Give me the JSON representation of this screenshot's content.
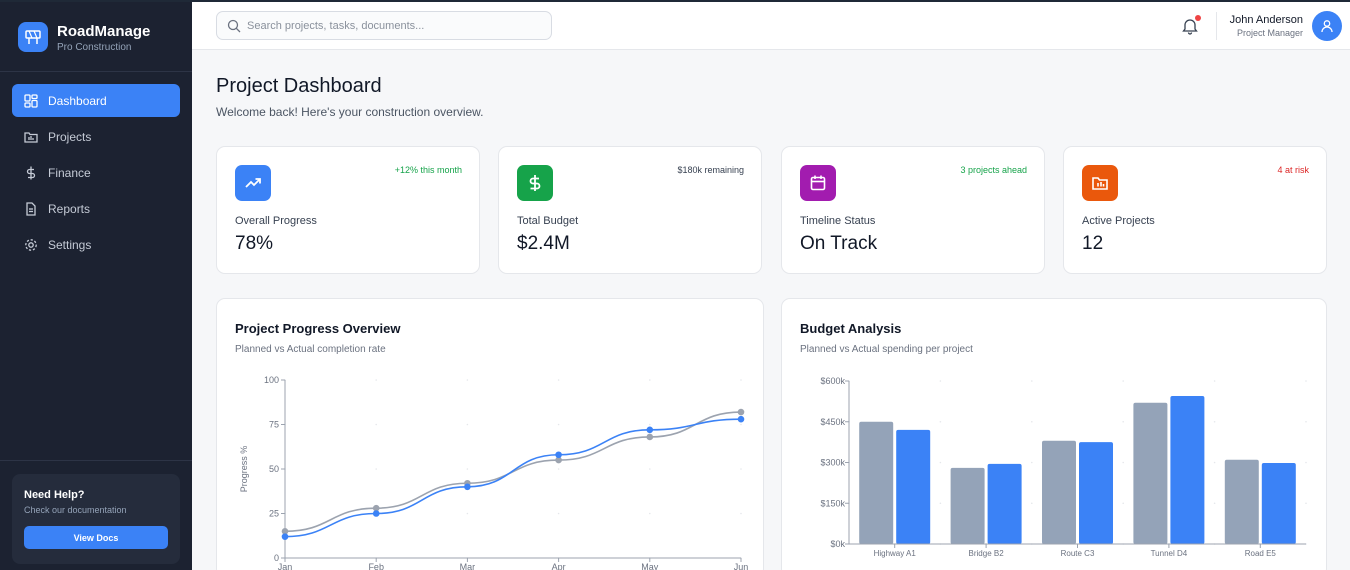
{
  "brand": {
    "title": "RoadManage",
    "subtitle": "Pro Construction"
  },
  "nav": [
    {
      "label": "Dashboard",
      "icon": "dashboard-icon",
      "active": true
    },
    {
      "label": "Projects",
      "icon": "folder-icon",
      "active": false
    },
    {
      "label": "Finance",
      "icon": "dollar-icon",
      "active": false
    },
    {
      "label": "Reports",
      "icon": "document-icon",
      "active": false
    },
    {
      "label": "Settings",
      "icon": "gear-icon",
      "active": false
    }
  ],
  "help": {
    "title": "Need Help?",
    "subtitle": "Check our documentation",
    "button": "View Docs"
  },
  "search": {
    "placeholder": "Search projects, tasks, documents..."
  },
  "user": {
    "name": "John Anderson",
    "role": "Project Manager"
  },
  "page": {
    "title": "Project Dashboard",
    "subtitle": "Welcome back! Here's your construction overview."
  },
  "stats": [
    {
      "label": "Overall Progress",
      "value": "78%",
      "note": "+12% this month",
      "note_color": "#16a34a",
      "icon": "trending-up-icon",
      "icon_bg": "#3b82f6"
    },
    {
      "label": "Total Budget",
      "value": "$2.4M",
      "note": "$180k remaining",
      "note_color": "#374151",
      "icon": "dollar-icon",
      "icon_bg": "#16a34a"
    },
    {
      "label": "Timeline Status",
      "value": "On Track",
      "note": "3 projects ahead",
      "note_color": "#16a34a",
      "icon": "calendar-icon",
      "icon_bg": "#a21caf"
    },
    {
      "label": "Active Projects",
      "value": "12",
      "note": "4 at risk",
      "note_color": "#dc2626",
      "icon": "folder-chart-icon",
      "icon_bg": "#ea580c"
    }
  ],
  "colors": {
    "accent": "#3b82f6",
    "planned": "#9ca3af",
    "planned_bar": "#94a3b8",
    "sidebar": "#1c2231"
  },
  "chart_data": [
    {
      "type": "line",
      "title": "Project Progress Overview",
      "subtitle": "Planned vs Actual completion rate",
      "ylabel": "Progress %",
      "xlabel": "",
      "x": [
        "Jan",
        "Feb",
        "Mar",
        "Apr",
        "May",
        "Jun"
      ],
      "ylim": [
        0,
        100
      ],
      "yticks": [
        "0",
        "25",
        "50",
        "75",
        "100"
      ],
      "series": [
        {
          "values": [
            15,
            28,
            42,
            55,
            68,
            82
          ],
          "color": "#9ca3af"
        },
        {
          "values": [
            12,
            25,
            40,
            58,
            72,
            78
          ],
          "color": "#3b82f6"
        }
      ],
      "grid": true
    },
    {
      "type": "bar",
      "title": "Budget Analysis",
      "subtitle": "Planned vs Actual spending per project",
      "categories": [
        "Highway A1",
        "Bridge B2",
        "Route C3",
        "Tunnel D4",
        "Road E5"
      ],
      "ylim": [
        0,
        600000
      ],
      "yticks": [
        "$0k",
        "$150k",
        "$300k",
        "$450k",
        "$600k"
      ],
      "series": [
        {
          "values": [
            450000,
            280000,
            380000,
            520000,
            310000
          ],
          "color": "#94a3b8"
        },
        {
          "values": [
            420000,
            295000,
            375000,
            545000,
            298000
          ],
          "color": "#3b82f6"
        }
      ],
      "grid": true
    }
  ]
}
